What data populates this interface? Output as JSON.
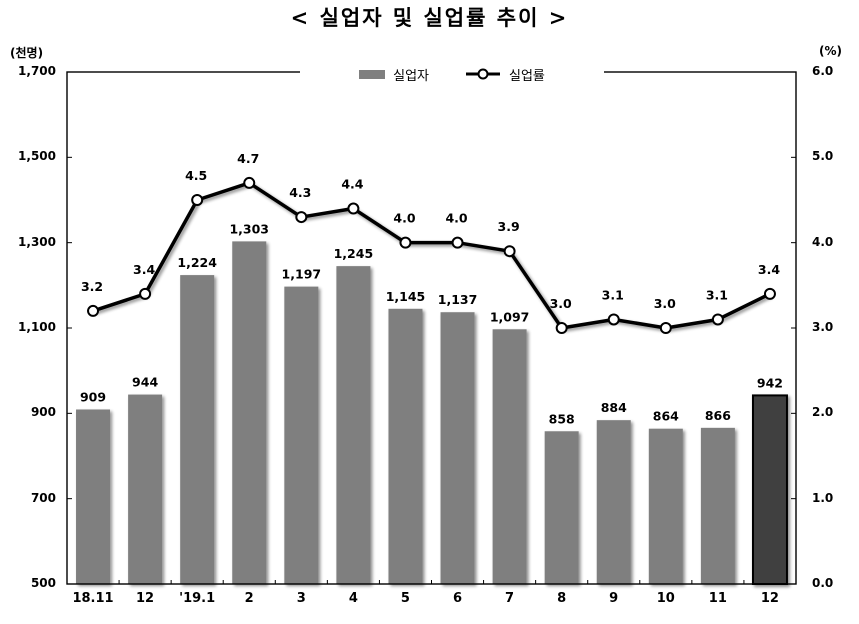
{
  "title": "< 실업자 및 실업률 추이 >",
  "left_axis": {
    "unit": "(천명)",
    "ticks": [
      "1,700",
      "1,500",
      "1,300",
      "1,100",
      "900",
      "700",
      "500"
    ]
  },
  "right_axis": {
    "unit": "(%)",
    "ticks": [
      "6.0",
      "5.0",
      "4.0",
      "3.0",
      "2.0",
      "1.0",
      "0.0"
    ]
  },
  "legend": {
    "bar_label": "실업자",
    "line_label": "실업률"
  },
  "colors": {
    "bar": "#7f7f7f",
    "bar_highlight": "#404040",
    "line": "#000000",
    "marker_fill": "#ffffff"
  },
  "chart_data": {
    "type": "bar+line",
    "title": "< 실업자 및 실업률 추이 >",
    "categories": [
      "18.11",
      "12",
      "'19.1",
      "2",
      "3",
      "4",
      "5",
      "6",
      "7",
      "8",
      "9",
      "10",
      "11",
      "12"
    ],
    "series": [
      {
        "name": "실업자",
        "type": "bar",
        "axis": "left",
        "unit": "천명",
        "values": [
          909,
          944,
          1224,
          1303,
          1197,
          1245,
          1145,
          1137,
          1097,
          858,
          884,
          864,
          866,
          942
        ],
        "labels": [
          "909",
          "944",
          "1,224",
          "1,303",
          "1,197",
          "1,245",
          "1,145",
          "1,137",
          "1,097",
          "858",
          "884",
          "864",
          "866",
          "942"
        ],
        "highlight_index": 13
      },
      {
        "name": "실업률",
        "type": "line",
        "axis": "right",
        "unit": "%",
        "values": [
          3.2,
          3.4,
          4.5,
          4.7,
          4.3,
          4.4,
          4.0,
          4.0,
          3.9,
          3.0,
          3.1,
          3.0,
          3.1,
          3.4
        ],
        "labels": [
          "3.2",
          "3.4",
          "4.5",
          "4.7",
          "4.3",
          "4.4",
          "4.0",
          "4.0",
          "3.9",
          "3.0",
          "3.1",
          "3.0",
          "3.1",
          "3.4"
        ]
      }
    ],
    "ylabel_left": "(천명)",
    "ylim_left": [
      500,
      1700
    ],
    "yticks_left": [
      500,
      700,
      900,
      1100,
      1300,
      1500,
      1700
    ],
    "ylabel_right": "(%)",
    "ylim_right": [
      0.0,
      6.0
    ],
    "yticks_right": [
      0,
      1,
      2,
      3,
      4,
      5,
      6
    ],
    "grid": false,
    "legend_position": "top-center"
  }
}
